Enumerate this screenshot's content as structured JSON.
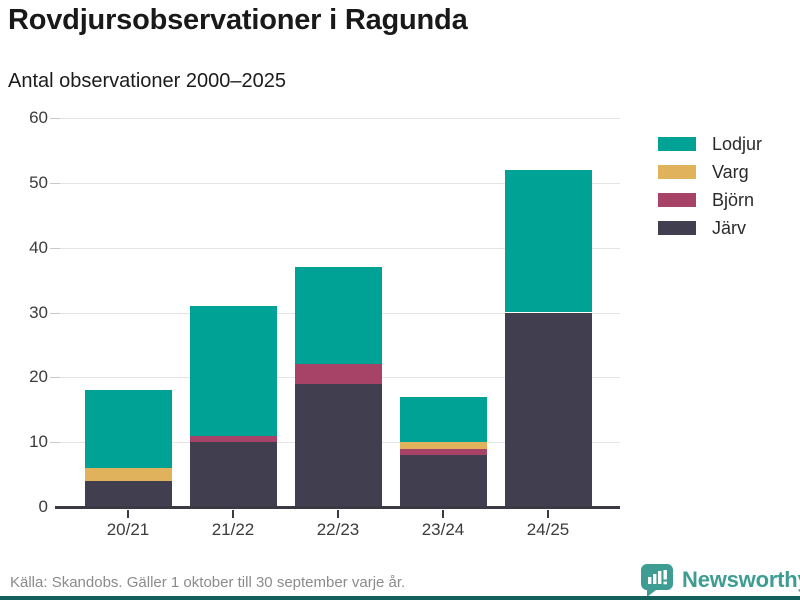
{
  "header": {
    "title": "Rovdjursobservationer i Ragunda",
    "subtitle": "Antal observationer 2000–2025"
  },
  "chart_data": {
    "type": "bar",
    "stacked": true,
    "title": "Rovdjursobservationer i Ragunda",
    "subtitle": "Antal observationer 2000–2025",
    "categories": [
      "20/21",
      "21/22",
      "22/23",
      "23/24",
      "24/25"
    ],
    "series": [
      {
        "name": "Järv",
        "color": "#413e4f",
        "values": [
          4,
          10,
          19,
          8,
          30
        ]
      },
      {
        "name": "Björn",
        "color": "#a74366",
        "values": [
          0,
          1,
          3,
          1,
          0
        ]
      },
      {
        "name": "Varg",
        "color": "#dfb25b",
        "values": [
          2,
          0,
          0,
          1,
          0
        ]
      },
      {
        "name": "Lodjur",
        "color": "#00a296",
        "values": [
          12,
          20,
          15,
          7,
          22
        ]
      }
    ],
    "legend_order": [
      "Lodjur",
      "Varg",
      "Björn",
      "Järv"
    ],
    "legend_position": "right",
    "yticks": [
      0,
      10,
      20,
      30,
      40,
      50,
      60
    ],
    "ylim": [
      0,
      60
    ],
    "grid": true
  },
  "footer": {
    "source": "Källa: Skandobs. Gäller 1 oktober till 30 september varje år.",
    "brand": "Newsworthy"
  },
  "colors": {
    "axis": "#3a3a44",
    "grid": "#e4e4e4",
    "tick_label": "#3c3c3c",
    "footer_text": "#8b8b8b",
    "brand_teal": "#3e9d92",
    "bottom_strip": "#14605b"
  }
}
